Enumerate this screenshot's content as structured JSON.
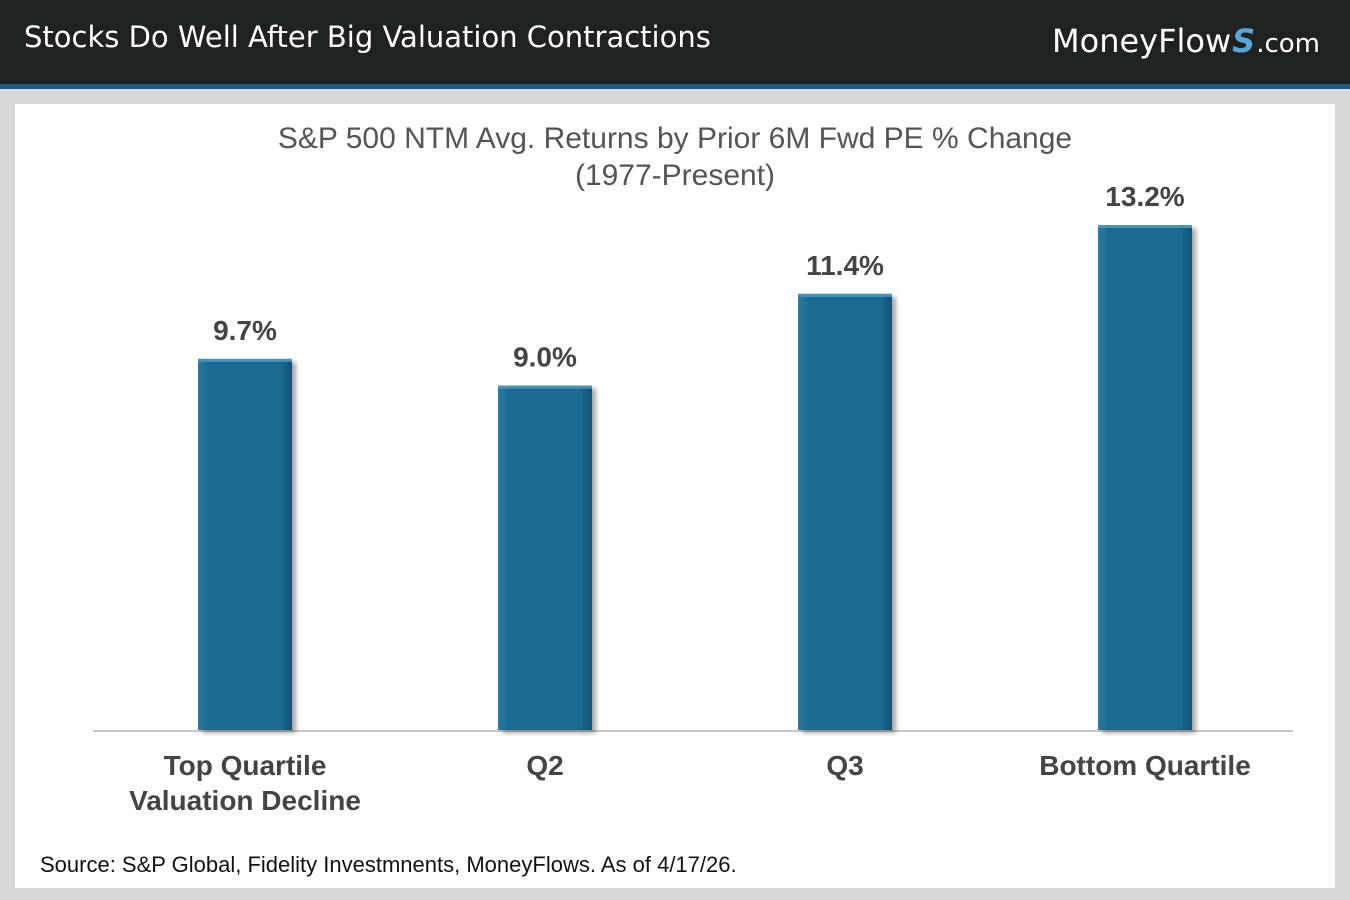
{
  "header": {
    "title": "Stocks Do Well After Big Valuation Contractions",
    "brand": {
      "prefix": "MoneyFlow",
      "mark": "S",
      "suffix": ".com"
    }
  },
  "colors": {
    "header_bg": "#1f2223",
    "header_rule": "#1c5a86",
    "bar": "#1b6a91",
    "brand_accent": "#5aa7d6"
  },
  "chart_data": {
    "type": "bar",
    "title": "S&P 500 NTM Avg. Returns by Prior 6M Fwd PE % Change",
    "subtitle": "(1977-Present)",
    "categories": [
      [
        "Top Quartile",
        "Valuation Decline"
      ],
      [
        "Q2"
      ],
      [
        "Q3"
      ],
      [
        "Bottom Quartile"
      ]
    ],
    "values": [
      9.7,
      9.0,
      11.4,
      13.2
    ],
    "value_labels": [
      "9.7%",
      "9.0%",
      "11.4%",
      "13.2%"
    ],
    "ylim": [
      0,
      13.2
    ],
    "grid": false,
    "legend": "none"
  },
  "source_note": "Source: S&P Global, Fidelity Investmnents, MoneyFlows. As of 4/17/26."
}
